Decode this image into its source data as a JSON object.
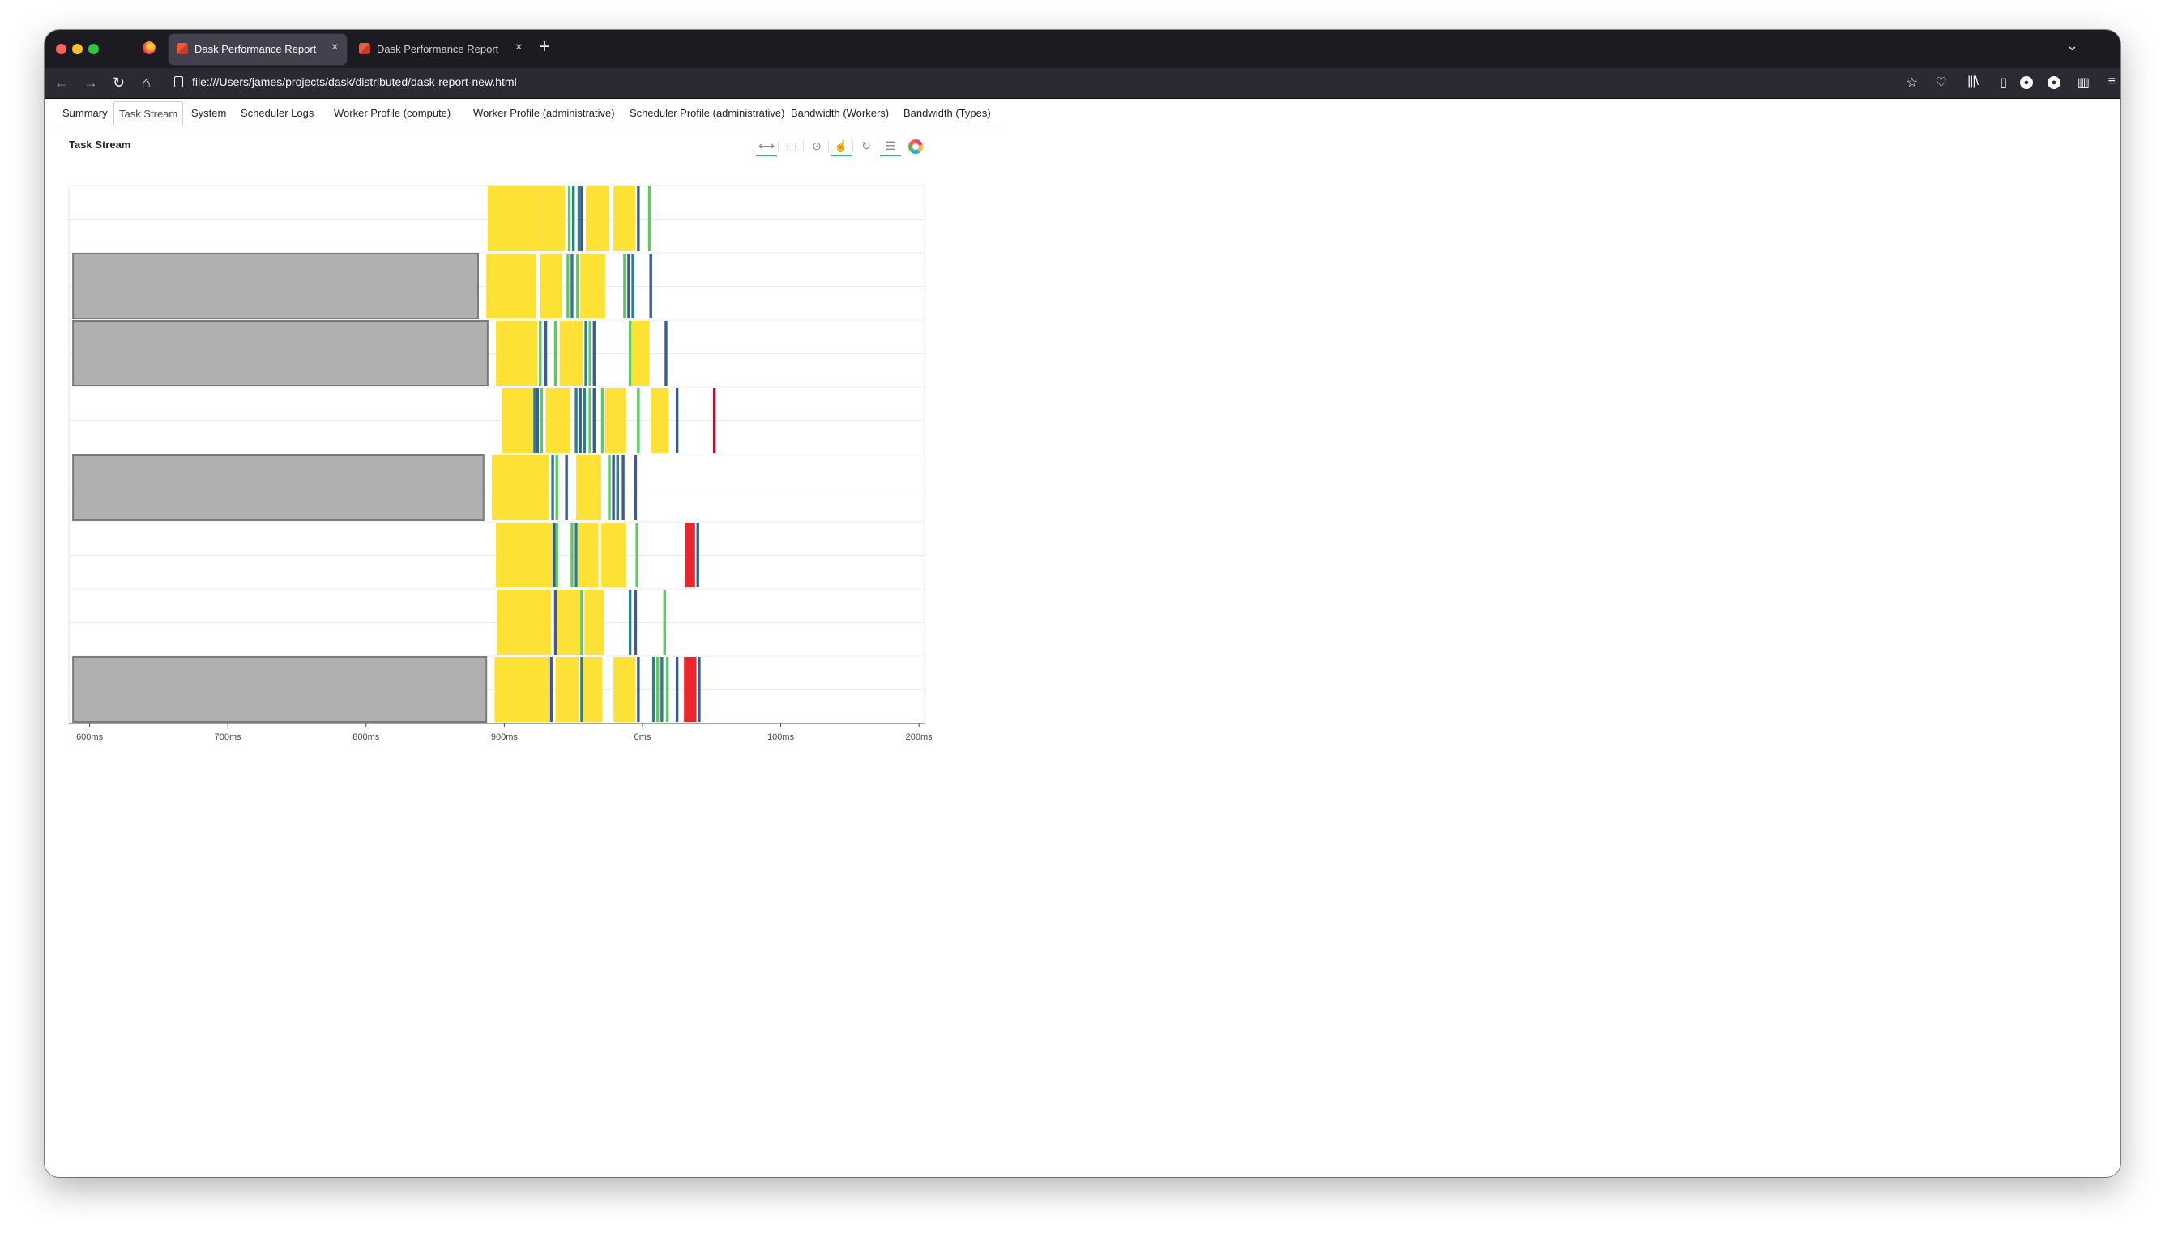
{
  "browser": {
    "tabs": [
      {
        "label": "Dask Performance Report",
        "active": true
      },
      {
        "label": "Dask Performance Report",
        "active": false
      }
    ],
    "new_tab_symbol": "+",
    "close_symbol": "×",
    "url": "file:///Users/james/projects/dask/distributed/dask-report-new.html",
    "nav_icons": [
      "back-arrow-icon",
      "forward-arrow-icon",
      "reload-icon",
      "home-icon"
    ],
    "toolbar_icons": [
      "bookmark-star-icon",
      "pocket-icon",
      "library-icon",
      "sidebar-icon",
      "profile-icon",
      "extension-icon",
      "columns-icon",
      "menu-icon"
    ]
  },
  "page": {
    "tabs": [
      {
        "label": "Summary",
        "active": false
      },
      {
        "label": "Task Stream",
        "active": true
      },
      {
        "label": "System",
        "active": false
      },
      {
        "label": "Scheduler Logs",
        "active": false
      },
      {
        "label": "Worker Profile (compute)",
        "active": false
      },
      {
        "label": "Worker Profile (administrative)",
        "active": false
      },
      {
        "label": "Scheduler Profile (administrative)",
        "active": false
      },
      {
        "label": "Bandwidth (Workers)",
        "active": false
      },
      {
        "label": "Bandwidth (Types)",
        "active": false
      }
    ],
    "plot_title": "Task Stream",
    "plot_tools": [
      "pan-icon",
      "box-zoom-icon",
      "wheel-zoom-icon",
      "tap-select-icon",
      "reset-icon",
      "hover-icon",
      "bokeh-logo-icon"
    ],
    "active_tools": [
      "pan-icon",
      "tap-select-icon",
      "hover-icon"
    ]
  },
  "chart_data": {
    "type": "gantt",
    "title": "Task Stream",
    "x_unit": "ms",
    "xlim": [
      585,
      1204
    ],
    "x_ticks": [
      {
        "value": 600,
        "label": "600ms"
      },
      {
        "value": 700,
        "label": "700ms"
      },
      {
        "value": 800,
        "label": "800ms"
      },
      {
        "value": 900,
        "label": "900ms"
      },
      {
        "value": 1000,
        "label": "0ms"
      },
      {
        "value": 1100,
        "label": "100ms"
      },
      {
        "value": 1200,
        "label": "200ms"
      }
    ],
    "rows": 8,
    "colors": {
      "compute": "#fde135",
      "transfer": "#b0b0b0",
      "teal": "#2a7f8e",
      "blue": "#3b5b92",
      "green": "#5ec962",
      "error": "#e8262b",
      "dark_red": "#b2182b"
    },
    "tasks": [
      {
        "row": 0,
        "start": 888,
        "end": 926,
        "kind": "compute"
      },
      {
        "row": 0,
        "start": 926,
        "end": 944,
        "kind": "compute"
      },
      {
        "row": 0,
        "start": 946,
        "end": 948,
        "kind": "green"
      },
      {
        "row": 0,
        "start": 949,
        "end": 951,
        "kind": "teal"
      },
      {
        "row": 0,
        "start": 953,
        "end": 955,
        "kind": "teal"
      },
      {
        "row": 0,
        "start": 955,
        "end": 957,
        "kind": "blue"
      },
      {
        "row": 0,
        "start": 959,
        "end": 976,
        "kind": "compute"
      },
      {
        "row": 0,
        "start": 979,
        "end": 995,
        "kind": "compute"
      },
      {
        "row": 0,
        "start": 996,
        "end": 998,
        "kind": "blue"
      },
      {
        "row": 0,
        "start": 1004,
        "end": 1006,
        "kind": "green"
      },
      {
        "row": 1,
        "start": 588,
        "end": 881,
        "kind": "transfer"
      },
      {
        "row": 1,
        "start": 887,
        "end": 923,
        "kind": "compute"
      },
      {
        "row": 1,
        "start": 926,
        "end": 942,
        "kind": "compute"
      },
      {
        "row": 1,
        "start": 945,
        "end": 947,
        "kind": "green"
      },
      {
        "row": 1,
        "start": 948,
        "end": 950,
        "kind": "teal"
      },
      {
        "row": 1,
        "start": 952,
        "end": 954,
        "kind": "green"
      },
      {
        "row": 1,
        "start": 955,
        "end": 973,
        "kind": "compute"
      },
      {
        "row": 1,
        "start": 986,
        "end": 988,
        "kind": "green"
      },
      {
        "row": 1,
        "start": 989,
        "end": 991,
        "kind": "blue"
      },
      {
        "row": 1,
        "start": 992,
        "end": 994,
        "kind": "teal"
      },
      {
        "row": 1,
        "start": 1005,
        "end": 1007,
        "kind": "blue"
      },
      {
        "row": 2,
        "start": 588,
        "end": 888,
        "kind": "transfer"
      },
      {
        "row": 2,
        "start": 894,
        "end": 924,
        "kind": "compute"
      },
      {
        "row": 2,
        "start": 925,
        "end": 927,
        "kind": "green"
      },
      {
        "row": 2,
        "start": 929,
        "end": 931,
        "kind": "blue"
      },
      {
        "row": 2,
        "start": 936,
        "end": 938,
        "kind": "green"
      },
      {
        "row": 2,
        "start": 940,
        "end": 957,
        "kind": "compute"
      },
      {
        "row": 2,
        "start": 958,
        "end": 960,
        "kind": "teal"
      },
      {
        "row": 2,
        "start": 961,
        "end": 963,
        "kind": "green"
      },
      {
        "row": 2,
        "start": 964,
        "end": 966,
        "kind": "blue"
      },
      {
        "row": 2,
        "start": 990,
        "end": 992,
        "kind": "green"
      },
      {
        "row": 2,
        "start": 992,
        "end": 1005,
        "kind": "compute"
      },
      {
        "row": 2,
        "start": 1016,
        "end": 1018,
        "kind": "blue"
      },
      {
        "row": 3,
        "start": 898,
        "end": 921,
        "kind": "compute"
      },
      {
        "row": 3,
        "start": 921,
        "end": 923,
        "kind": "teal"
      },
      {
        "row": 3,
        "start": 923,
        "end": 925,
        "kind": "blue"
      },
      {
        "row": 3,
        "start": 926,
        "end": 928,
        "kind": "green"
      },
      {
        "row": 3,
        "start": 930,
        "end": 948,
        "kind": "compute"
      },
      {
        "row": 3,
        "start": 951,
        "end": 953,
        "kind": "teal"
      },
      {
        "row": 3,
        "start": 954,
        "end": 956,
        "kind": "blue"
      },
      {
        "row": 3,
        "start": 957,
        "end": 959,
        "kind": "teal"
      },
      {
        "row": 3,
        "start": 961,
        "end": 963,
        "kind": "green"
      },
      {
        "row": 3,
        "start": 964,
        "end": 966,
        "kind": "blue"
      },
      {
        "row": 3,
        "start": 970,
        "end": 972,
        "kind": "green"
      },
      {
        "row": 3,
        "start": 973,
        "end": 988,
        "kind": "compute"
      },
      {
        "row": 3,
        "start": 996,
        "end": 998,
        "kind": "green"
      },
      {
        "row": 3,
        "start": 1006,
        "end": 1019,
        "kind": "compute"
      },
      {
        "row": 3,
        "start": 1024,
        "end": 1026,
        "kind": "blue"
      },
      {
        "row": 3,
        "start": 1051,
        "end": 1053,
        "kind": "dark_red"
      },
      {
        "row": 4,
        "start": 588,
        "end": 885,
        "kind": "transfer"
      },
      {
        "row": 4,
        "start": 891,
        "end": 932,
        "kind": "compute"
      },
      {
        "row": 4,
        "start": 934,
        "end": 936,
        "kind": "teal"
      },
      {
        "row": 4,
        "start": 937,
        "end": 939,
        "kind": "green"
      },
      {
        "row": 4,
        "start": 944,
        "end": 946,
        "kind": "blue"
      },
      {
        "row": 4,
        "start": 952,
        "end": 970,
        "kind": "compute"
      },
      {
        "row": 4,
        "start": 975,
        "end": 977,
        "kind": "green"
      },
      {
        "row": 4,
        "start": 978,
        "end": 980,
        "kind": "blue"
      },
      {
        "row": 4,
        "start": 981,
        "end": 983,
        "kind": "teal"
      },
      {
        "row": 4,
        "start": 985,
        "end": 987,
        "kind": "blue"
      },
      {
        "row": 4,
        "start": 994,
        "end": 996,
        "kind": "blue"
      },
      {
        "row": 5,
        "start": 894,
        "end": 935,
        "kind": "compute"
      },
      {
        "row": 5,
        "start": 935,
        "end": 937,
        "kind": "blue"
      },
      {
        "row": 5,
        "start": 937,
        "end": 939,
        "kind": "green"
      },
      {
        "row": 5,
        "start": 948,
        "end": 950,
        "kind": "green"
      },
      {
        "row": 5,
        "start": 951,
        "end": 953,
        "kind": "teal"
      },
      {
        "row": 5,
        "start": 953,
        "end": 968,
        "kind": "compute"
      },
      {
        "row": 5,
        "start": 970,
        "end": 988,
        "kind": "compute"
      },
      {
        "row": 5,
        "start": 995,
        "end": 997,
        "kind": "green"
      },
      {
        "row": 5,
        "start": 1031,
        "end": 1038,
        "kind": "error"
      },
      {
        "row": 5,
        "start": 1039,
        "end": 1041,
        "kind": "blue"
      },
      {
        "row": 6,
        "start": 895,
        "end": 934,
        "kind": "compute"
      },
      {
        "row": 6,
        "start": 936,
        "end": 938,
        "kind": "blue"
      },
      {
        "row": 6,
        "start": 938,
        "end": 955,
        "kind": "compute"
      },
      {
        "row": 6,
        "start": 955,
        "end": 957,
        "kind": "green"
      },
      {
        "row": 6,
        "start": 958,
        "end": 972,
        "kind": "compute"
      },
      {
        "row": 6,
        "start": 990,
        "end": 992,
        "kind": "teal"
      },
      {
        "row": 6,
        "start": 994,
        "end": 996,
        "kind": "blue"
      },
      {
        "row": 6,
        "start": 1015,
        "end": 1017,
        "kind": "green"
      },
      {
        "row": 7,
        "start": 588,
        "end": 887,
        "kind": "transfer"
      },
      {
        "row": 7,
        "start": 893,
        "end": 932,
        "kind": "compute"
      },
      {
        "row": 7,
        "start": 933,
        "end": 935,
        "kind": "blue"
      },
      {
        "row": 7,
        "start": 937,
        "end": 954,
        "kind": "compute"
      },
      {
        "row": 7,
        "start": 955,
        "end": 957,
        "kind": "teal"
      },
      {
        "row": 7,
        "start": 957,
        "end": 971,
        "kind": "compute"
      },
      {
        "row": 7,
        "start": 979,
        "end": 995,
        "kind": "compute"
      },
      {
        "row": 7,
        "start": 996,
        "end": 998,
        "kind": "blue"
      },
      {
        "row": 7,
        "start": 1007,
        "end": 1009,
        "kind": "teal"
      },
      {
        "row": 7,
        "start": 1010,
        "end": 1012,
        "kind": "green"
      },
      {
        "row": 7,
        "start": 1013,
        "end": 1015,
        "kind": "teal"
      },
      {
        "row": 7,
        "start": 1017,
        "end": 1019,
        "kind": "green"
      },
      {
        "row": 7,
        "start": 1024,
        "end": 1026,
        "kind": "blue"
      },
      {
        "row": 7,
        "start": 1030,
        "end": 1039,
        "kind": "error"
      },
      {
        "row": 7,
        "start": 1040,
        "end": 1042,
        "kind": "blue"
      }
    ]
  }
}
